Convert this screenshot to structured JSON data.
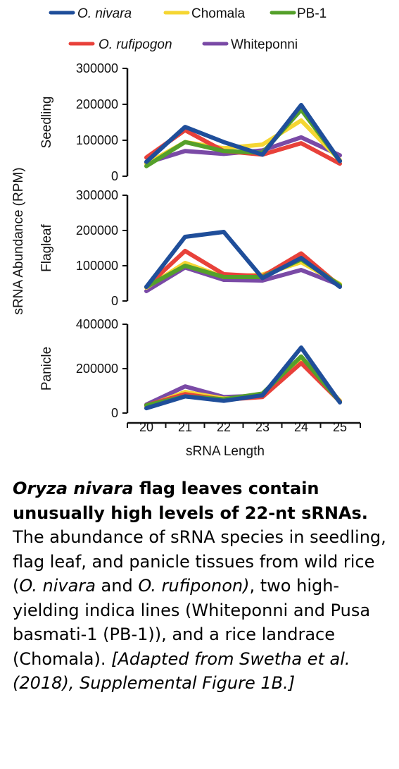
{
  "chart_data": {
    "type": "line",
    "x": [
      20,
      21,
      22,
      23,
      24,
      25
    ],
    "xlabel": "sRNA Length",
    "ylabel": "sRNA Abundance (RPM)",
    "legend": {
      "placement": "top",
      "entries": [
        {
          "name": "O. nivara",
          "italic": true,
          "color": "#1f4e9a"
        },
        {
          "name": "Chomala",
          "italic": false,
          "color": "#f5d633"
        },
        {
          "name": "PB-1",
          "italic": false,
          "color": "#54a02a"
        },
        {
          "name": "O. rufipogon",
          "italic": true,
          "color": "#e8413a"
        },
        {
          "name": "Whiteponni",
          "italic": false,
          "color": "#7a4aa6"
        }
      ]
    },
    "panels": [
      {
        "label": "Seedling",
        "ylim": [
          0,
          300000
        ],
        "yticks": [
          "0",
          "100000",
          "200000",
          "300000"
        ],
        "series": [
          {
            "name": "O. nivara",
            "values": [
              40000,
              137000,
              95000,
              60000,
              198000,
              42000
            ]
          },
          {
            "name": "Chomala",
            "values": [
              35000,
              95000,
              78000,
              88000,
              155000,
              45000
            ]
          },
          {
            "name": "O. rufipogon",
            "values": [
              52000,
              128000,
              70000,
              60000,
              92000,
              35000
            ]
          },
          {
            "name": "Whiteponni",
            "values": [
              37000,
              70000,
              62000,
              72000,
              108000,
              58000
            ]
          },
          {
            "name": "PB-1",
            "values": [
              28000,
              95000,
              70000,
              65000,
              185000,
              42000
            ]
          }
        ]
      },
      {
        "label": "Flagleaf",
        "ylim": [
          0,
          300000
        ],
        "yticks": [
          "0",
          "100000",
          "200000",
          "300000"
        ],
        "series": [
          {
            "name": "O. nivara",
            "values": [
              40000,
              182000,
              196000,
              65000,
              122000,
              40000
            ]
          },
          {
            "name": "Chomala",
            "values": [
              38000,
              108000,
              68000,
              75000,
              110000,
              48000
            ]
          },
          {
            "name": "O. rufipogon",
            "values": [
              40000,
              142000,
              76000,
              70000,
              135000,
              42000
            ]
          },
          {
            "name": "Whiteponni",
            "values": [
              28000,
              95000,
              60000,
              58000,
              88000,
              45000
            ]
          },
          {
            "name": "PB-1",
            "values": [
              40000,
              100000,
              68000,
              68000,
              118000,
              45000
            ]
          }
        ]
      },
      {
        "label": "Panicle",
        "ylim": [
          0,
          400000
        ],
        "yticks": [
          "0",
          "200000",
          "400000"
        ],
        "series": [
          {
            "name": "O. nivara",
            "values": [
              22000,
              75000,
              55000,
              80000,
              295000,
              48000
            ]
          },
          {
            "name": "Chomala",
            "values": [
              30000,
              95000,
              65000,
              75000,
              245000,
              55000
            ]
          },
          {
            "name": "O. rufipogon",
            "values": [
              35000,
              85000,
              60000,
              72000,
              225000,
              52000
            ]
          },
          {
            "name": "Whiteponni",
            "values": [
              38000,
              120000,
              72000,
              78000,
              240000,
              55000
            ]
          },
          {
            "name": "PB-1",
            "values": [
              35000,
              75000,
              62000,
              88000,
              255000,
              50000
            ]
          }
        ]
      }
    ]
  },
  "caption": {
    "title_italic": "Oryza nivara",
    "title_rest": " flag leaves contain unusually high levels of 22-nt sRNAs.",
    "body_1": " The abundance of sRNA species in seedling, flag leaf, and panicle tissues from wild rice (",
    "body_2_italic": "O. nivara",
    "body_3": " and ",
    "body_4_italic": "O. rufiponon)",
    "body_5": ", two high-yielding indica lines (Whiteponni and Pusa basmati-1 (PB-1)), and a rice landrace (Chomala).",
    "citation": " [Adapted from Swetha et al. (2018), Supplemental Figure 1B.]"
  }
}
